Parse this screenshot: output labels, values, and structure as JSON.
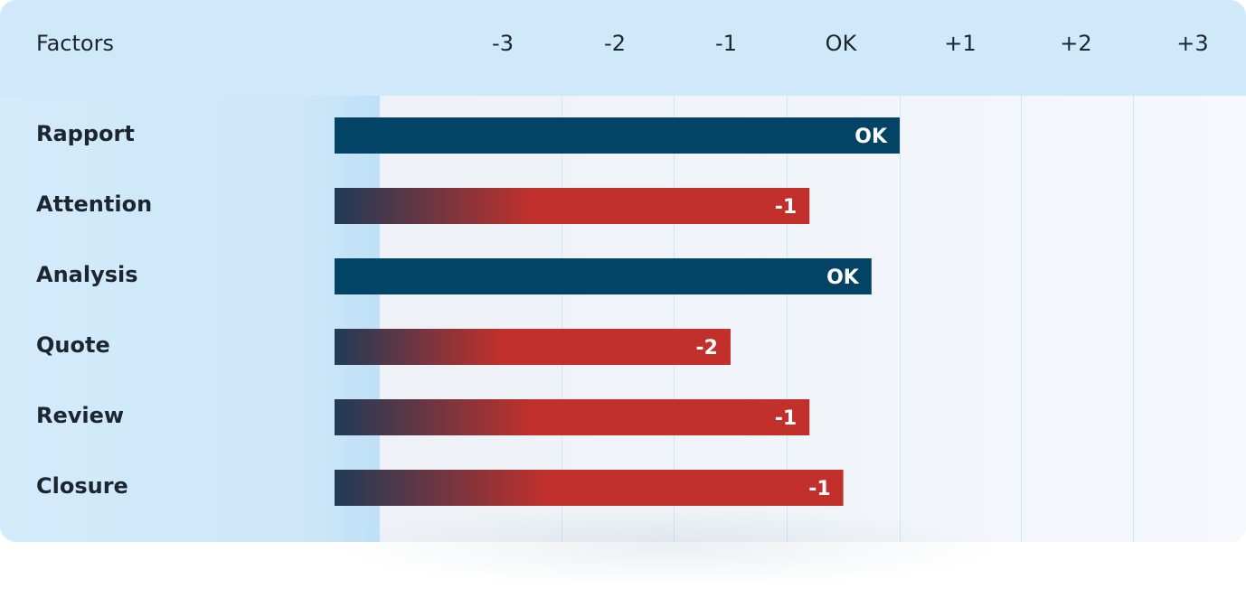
{
  "chart_data": {
    "type": "bar",
    "orientation": "horizontal",
    "header_label": "Factors",
    "x_ticks": [
      "-3",
      "-2",
      "-1",
      "OK",
      "+1",
      "+2",
      "+3"
    ],
    "categories": [
      "Rapport",
      "Attention",
      "Analysis",
      "Quote",
      "Review",
      "Closure"
    ],
    "bars": [
      {
        "factor": "Rapport",
        "value": 0,
        "label": "OK",
        "status": "ok"
      },
      {
        "factor": "Attention",
        "value": -0.8,
        "label": "-1",
        "status": "negative"
      },
      {
        "factor": "Analysis",
        "value": -0.25,
        "label": "OK",
        "status": "ok"
      },
      {
        "factor": "Quote",
        "value": -1.5,
        "label": "-2",
        "status": "negative"
      },
      {
        "factor": "Review",
        "value": -0.8,
        "label": "-1",
        "status": "negative"
      },
      {
        "factor": "Closure",
        "value": -0.5,
        "label": "-1",
        "status": "negative"
      }
    ],
    "xlim": [
      -3,
      3
    ],
    "grid": true,
    "colors": {
      "ok": "#034466",
      "negative": "#c1302b",
      "negative_start": "#1f3b57"
    }
  }
}
